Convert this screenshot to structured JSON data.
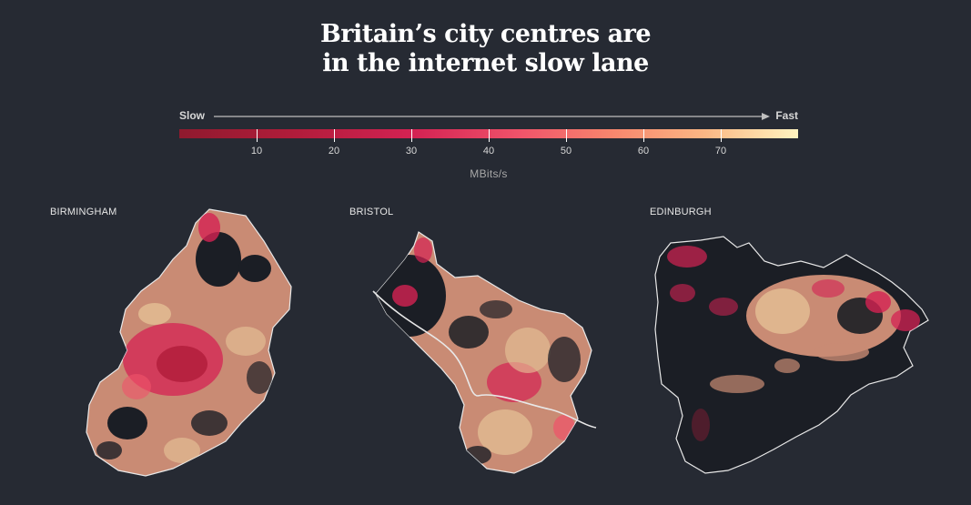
{
  "title_lines": [
    "Britain’s city centres are",
    "in the internet slow lane"
  ],
  "legend": {
    "slow_label": "Slow",
    "fast_label": "Fast",
    "ticks": [
      "10",
      "20",
      "30",
      "40",
      "50",
      "60",
      "70"
    ],
    "unit": "MBits/s",
    "colors": [
      "#8f1a2e",
      "#d42253",
      "#f0536a",
      "#f7866d",
      "#fbb784",
      "#fff4c0"
    ]
  },
  "maps": [
    {
      "name": "BIRMINGHAM"
    },
    {
      "name": "BRISTOL"
    },
    {
      "name": "EDINBURGH"
    }
  ]
}
